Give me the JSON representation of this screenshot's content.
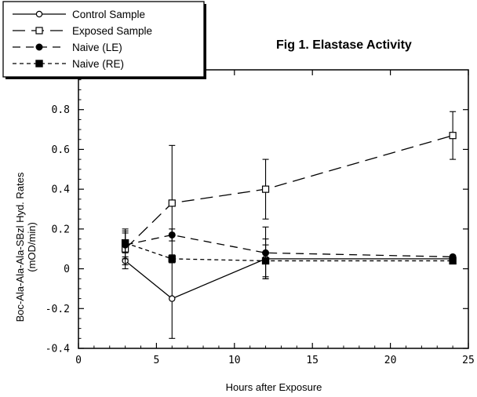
{
  "chart_data": {
    "type": "line",
    "title": "Fig 1.  Elastase Activity",
    "xlabel": "Hours after Exposure",
    "ylabel": [
      "Boc-Ala-Ala-Ala-SBzl Hyd. Rates",
      "(mOD/min)"
    ],
    "xlim": [
      0,
      25
    ],
    "ylim": [
      -0.4,
      1.0
    ],
    "x_ticks": [
      "0",
      "5",
      "10",
      "15",
      "20",
      "25"
    ],
    "y_ticks": [
      "-0.4",
      "-0.2",
      "0",
      "0.2",
      "0.4",
      "0.6",
      "0.8"
    ],
    "grid": false,
    "legend_position": "top-left",
    "series": [
      {
        "name": "Control Sample",
        "line": "solid",
        "marker": "open-circle",
        "x": [
          3,
          6,
          12,
          24
        ],
        "y": [
          0.04,
          -0.15,
          0.05,
          0.05
        ],
        "err": [
          0.02,
          0.2,
          0.1,
          0.01
        ]
      },
      {
        "name": "Exposed Sample",
        "line": "long-dash",
        "marker": "open-square",
        "x": [
          3,
          6,
          12,
          24
        ],
        "y": [
          0.1,
          0.33,
          0.4,
          0.67
        ],
        "err": [
          0.1,
          0.29,
          0.15,
          0.12
        ]
      },
      {
        "name": "Naive (LE)",
        "line": "dash",
        "marker": "filled-circle",
        "x": [
          3,
          6,
          12,
          24
        ],
        "y": [
          0.12,
          0.17,
          0.08,
          0.06
        ],
        "err": [
          0.07,
          0.03,
          0.13,
          0.01
        ]
      },
      {
        "name": "Naive (RE)",
        "line": "short-dash",
        "marker": "filled-square",
        "x": [
          3,
          6,
          12,
          24
        ],
        "y": [
          0.13,
          0.05,
          0.04,
          0.04
        ],
        "err": [
          0.05,
          0.02,
          0.08,
          0.01
        ]
      }
    ]
  }
}
